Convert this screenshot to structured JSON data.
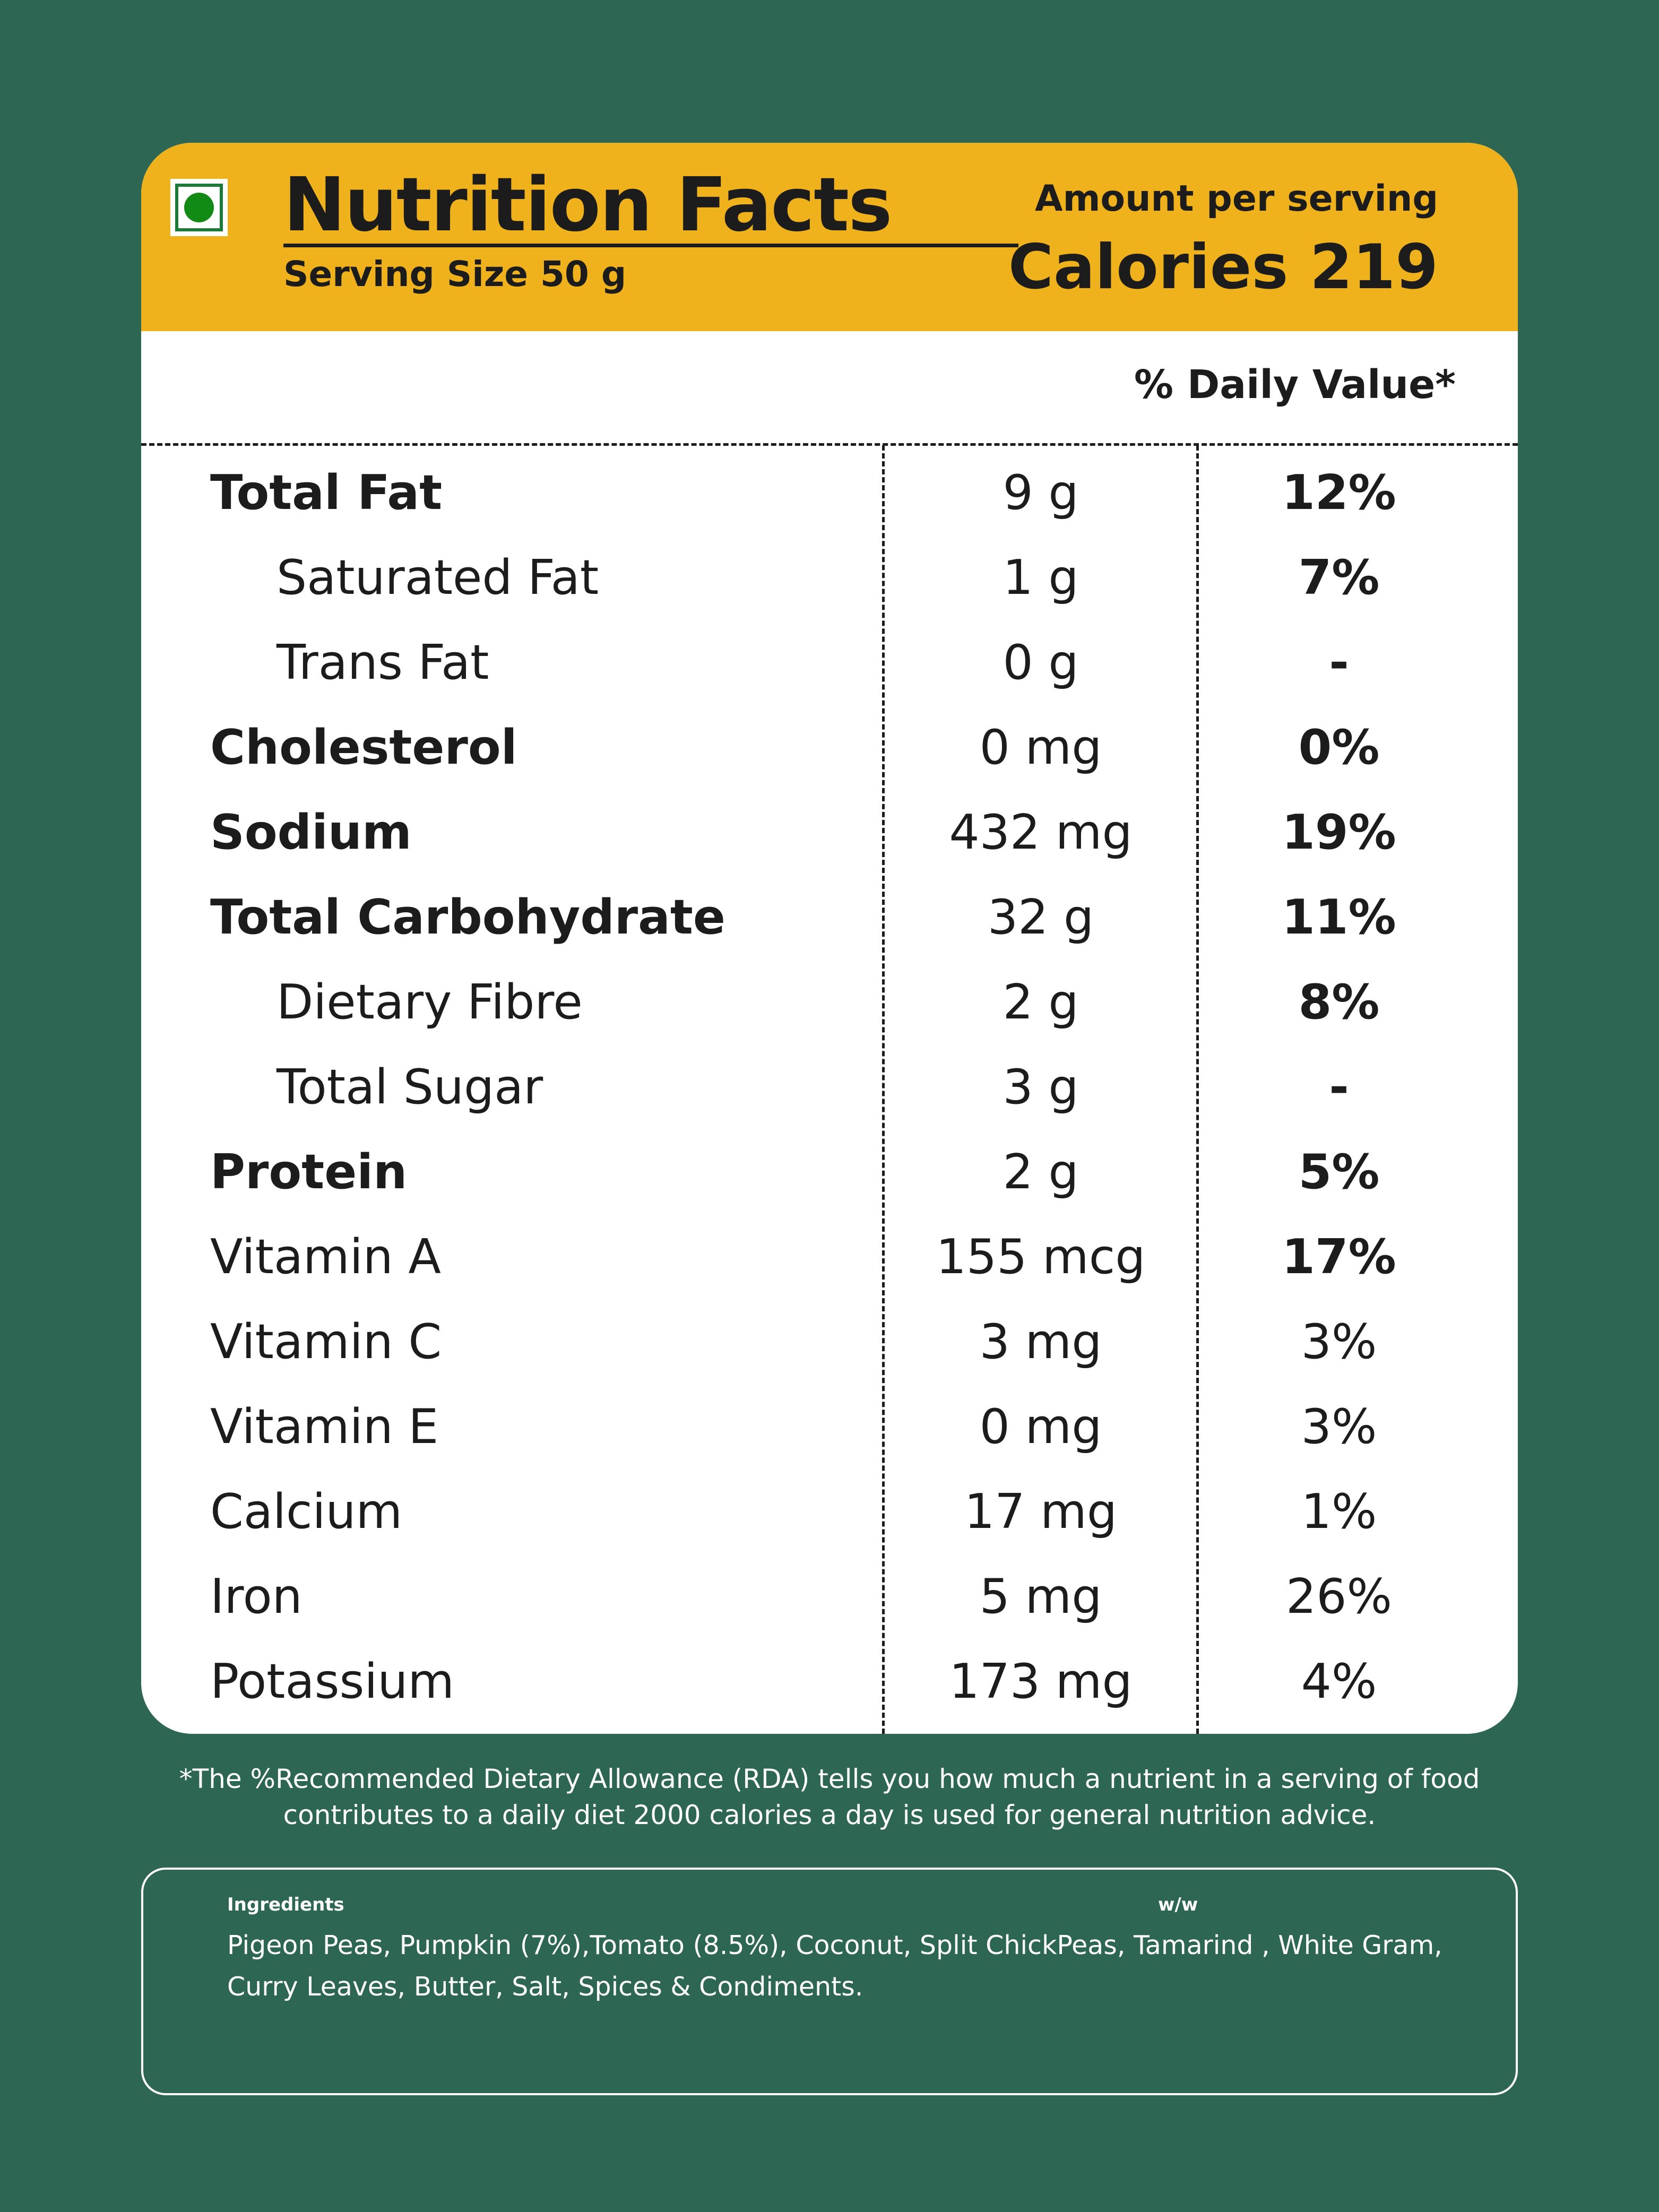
{
  "header": {
    "title": "Nutrition Facts",
    "serving_size": "Serving Size  50 g",
    "amount_per_serving": "Amount per serving",
    "calories": "Calories 219"
  },
  "daily_value_header": "% Daily Value*",
  "nutrients": [
    {
      "name": "Total Fat",
      "amount": "9 g",
      "dv": "12%"
    },
    {
      "name": "Saturated Fat",
      "amount": "1 g",
      "dv": "7%"
    },
    {
      "name": "Trans Fat",
      "amount": "0 g",
      "dv": "-"
    },
    {
      "name": "Cholesterol",
      "amount": "0 mg",
      "dv": "0%"
    },
    {
      "name": "Sodium",
      "amount": "432 mg",
      "dv": "19%"
    },
    {
      "name": "Total Carbohydrate",
      "amount": "32 g",
      "dv": "11%"
    },
    {
      "name": "Dietary Fibre",
      "amount": "2 g",
      "dv": "8%"
    },
    {
      "name": "Total Sugar",
      "amount": "3 g",
      "dv": "-"
    },
    {
      "name": "Protein",
      "amount": "2 g",
      "dv": "5%"
    },
    {
      "name": "Vitamin A",
      "amount": "155 mcg",
      "dv": "17%"
    },
    {
      "name": "Vitamin C",
      "amount": "3 mg",
      "dv": "3%"
    },
    {
      "name": "Vitamin E",
      "amount": "0 mg",
      "dv": "3%"
    },
    {
      "name": "Calcium",
      "amount": "17 mg",
      "dv": "1%"
    },
    {
      "name": "Iron",
      "amount": "5 mg",
      "dv": "26%"
    },
    {
      "name": "Potassium",
      "amount": "173 mg",
      "dv": "4%"
    }
  ],
  "footnote": {
    "line1": "*The %Recommended Dietary Allowance (RDA) tells you how much a nutrient in a serving of food",
    "line2": "contributes to a daily diet 2000 calories a day is used for general nutrition advice."
  },
  "ingredients": {
    "label": "Ingredients",
    "ww_label": "w/w",
    "line1": "Pigeon Peas, Pumpkin (7%),Tomato (8.5%), Coconut, Split ChickPeas, Tamarind , White Gram,",
    "line2": "Curry Leaves, Butter, Salt, Spices & Condiments."
  },
  "colors": {
    "background": "#2d6753",
    "header_band": "#efb21c",
    "veg_dot": "#128a16"
  }
}
